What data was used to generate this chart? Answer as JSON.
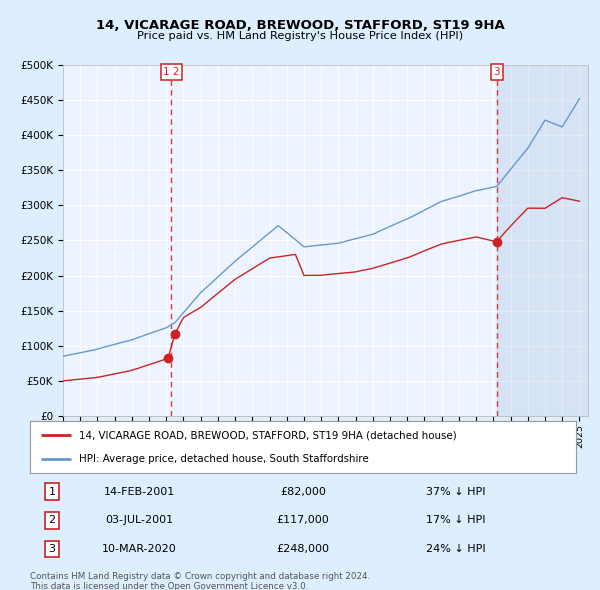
{
  "title_line1": "14, VICARAGE ROAD, BREWOOD, STAFFORD, ST19 9HA",
  "title_line2": "Price paid vs. HM Land Registry's House Price Index (HPI)",
  "legend_house": "14, VICARAGE ROAD, BREWOOD, STAFFORD, ST19 9HA (detached house)",
  "legend_hpi": "HPI: Average price, detached house, South Staffordshire",
  "transactions": [
    {
      "label": "1",
      "date": "14-FEB-2001",
      "price": 82000,
      "hpi_pct": "37% ↓ HPI",
      "x": 2001.12
    },
    {
      "label": "2",
      "date": "03-JUL-2001",
      "price": 117000,
      "hpi_pct": "17% ↓ HPI",
      "x": 2001.5
    },
    {
      "label": "3",
      "date": "10-MAR-2020",
      "price": 248000,
      "hpi_pct": "24% ↓ HPI",
      "x": 2020.19
    }
  ],
  "vline_x12": 2001.3,
  "vline_x3": 2020.19,
  "ylim": [
    0,
    500000
  ],
  "xlim_start": 1995,
  "xlim_end": 2025.5,
  "bg_color": "#ddeeff",
  "plot_bg_color": "#eef4ff",
  "grid_color": "#ffffff",
  "house_line_color": "#cc2222",
  "hpi_line_color": "#6699cc",
  "vline_color": "#cc2222",
  "hpi_kp_x": [
    1995,
    1997,
    1999,
    2001,
    2001.5,
    2003,
    2005,
    2007.5,
    2009,
    2011,
    2013,
    2015,
    2017,
    2019,
    2020.2,
    2022,
    2023,
    2024,
    2025
  ],
  "hpi_kp_y": [
    85000,
    95000,
    108000,
    125000,
    132000,
    175000,
    220000,
    270000,
    240000,
    245000,
    258000,
    280000,
    305000,
    320000,
    326000,
    380000,
    420000,
    410000,
    450000
  ],
  "house_kp_x": [
    1995,
    1997,
    1999,
    2001.1,
    2001.5,
    2002,
    2003,
    2005,
    2007,
    2008.5,
    2009,
    2010,
    2012,
    2013,
    2015,
    2017,
    2019,
    2020.2,
    2021,
    2022,
    2023,
    2024,
    2025
  ],
  "house_kp_y": [
    50000,
    55000,
    65000,
    82000,
    117000,
    140000,
    155000,
    195000,
    225000,
    230000,
    200000,
    200000,
    205000,
    210000,
    225000,
    245000,
    255000,
    248000,
    270000,
    295000,
    295000,
    310000,
    305000
  ],
  "footnote1": "Contains HM Land Registry data © Crown copyright and database right 2024.",
  "footnote2": "This data is licensed under the Open Government Licence v3.0.",
  "table_rows": [
    [
      "1",
      "14-FEB-2001",
      "£82,000",
      "37% ↓ HPI"
    ],
    [
      "2",
      "03-JUL-2001",
      "£117,000",
      "17% ↓ HPI"
    ],
    [
      "3",
      "10-MAR-2020",
      "£248,000",
      "24% ↓ HPI"
    ]
  ]
}
